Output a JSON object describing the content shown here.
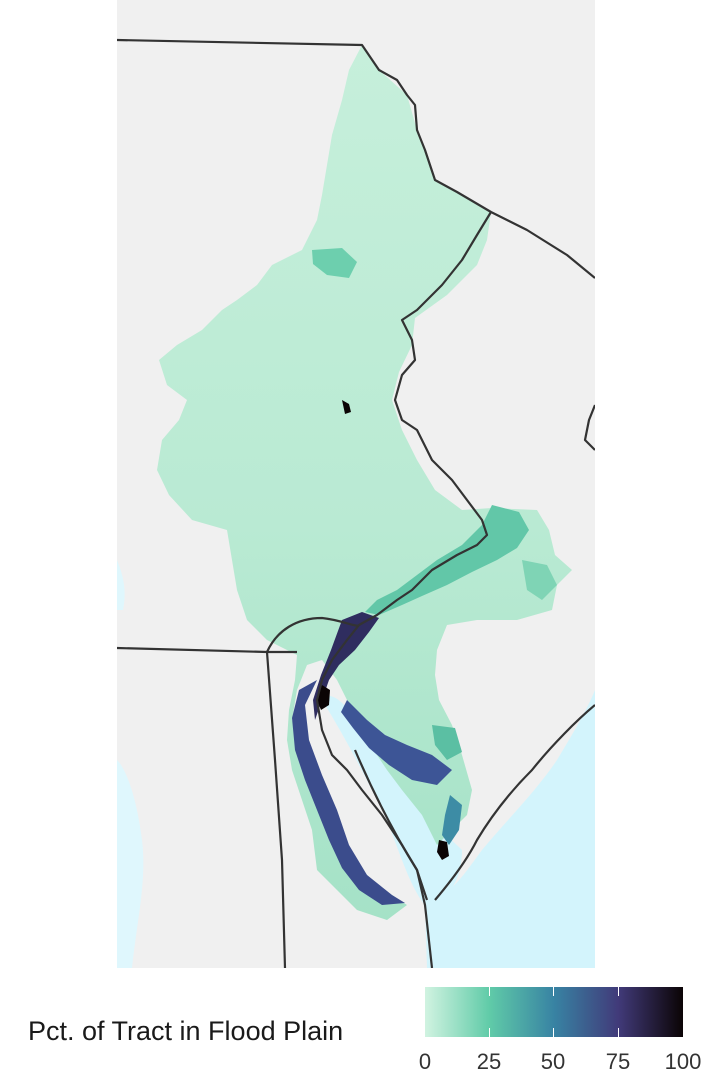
{
  "legend": {
    "title": "Pct. of Tract in Flood Plain",
    "ticks": [
      {
        "value": 0,
        "label": "0"
      },
      {
        "value": 25,
        "label": "25"
      },
      {
        "value": 50,
        "label": "50"
      },
      {
        "value": 75,
        "label": "75"
      },
      {
        "value": 100,
        "label": "100"
      }
    ],
    "min": 0,
    "max": 100
  },
  "colors": {
    "scale_low": "#d1f3e1",
    "scale_25": "#60cba8",
    "scale_50": "#3883a3",
    "scale_75": "#413a79",
    "scale_high": "#0b0405",
    "land_background": "#f0f0f0",
    "water": "#d3f4fc",
    "boundary": "#333333"
  }
}
